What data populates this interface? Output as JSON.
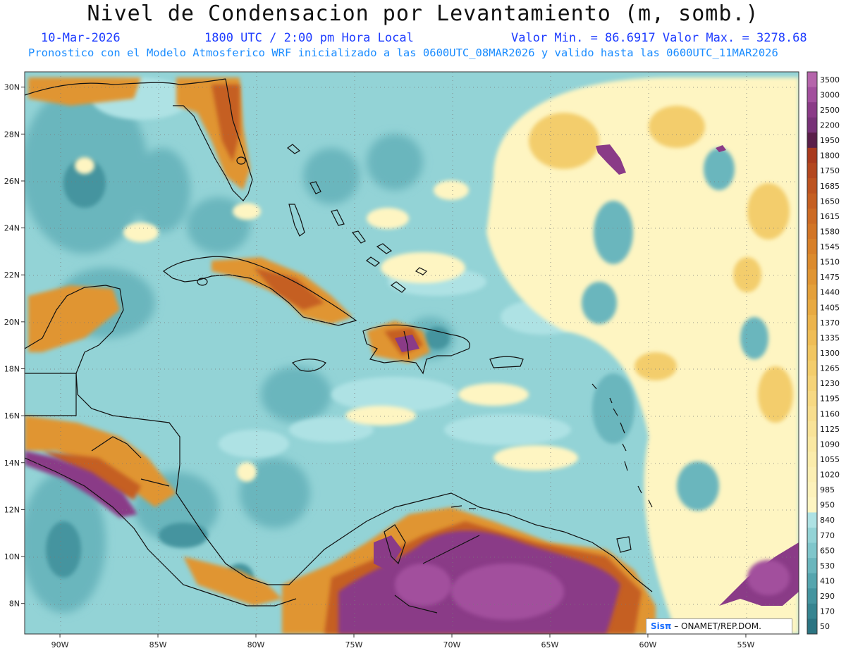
{
  "header": {
    "title": "Nivel de Condensacion por Levantamiento (m, somb.)",
    "date": "10-Mar-2026",
    "time": "1800 UTC / 2:00 pm Hora Local",
    "min_max": "Valor Min. = 86.6917  Valor Max. = 3278.68",
    "model_info": "Pronostico con el Modelo Atmosferico WRF inicializado a las 0600UTC_08MAR2026 y valido hasta las  0600UTC_11MAR2026"
  },
  "axes": {
    "lat_labels": [
      "30N",
      "28N",
      "26N",
      "24N",
      "22N",
      "20N",
      "18N",
      "16N",
      "14N",
      "12N",
      "10N",
      "8N"
    ],
    "lat_values": [
      30,
      28,
      26,
      24,
      22,
      20,
      18,
      16,
      14,
      12,
      10,
      8
    ],
    "lon_labels": [
      "90W",
      "85W",
      "80W",
      "75W",
      "70W",
      "65W",
      "60W",
      "55W"
    ],
    "lon_values": [
      -90,
      -85,
      -80,
      -75,
      -70,
      -65,
      -60,
      -55
    ]
  },
  "colorbar": {
    "labels": [
      "3500",
      "3000",
      "2500",
      "2200",
      "1950",
      "1800",
      "1750",
      "1685",
      "1650",
      "1615",
      "1580",
      "1545",
      "1510",
      "1475",
      "1440",
      "1405",
      "1370",
      "1335",
      "1300",
      "1265",
      "1230",
      "1195",
      "1160",
      "1125",
      "1090",
      "1055",
      "1020",
      "985",
      "950",
      "840",
      "770",
      "650",
      "530",
      "410",
      "290",
      "170",
      "50"
    ],
    "colors": [
      "#b565ab",
      "#a24f9d",
      "#8a3b87",
      "#773277",
      "#5a1f4a",
      "#a93a1e",
      "#b3471f",
      "#bd5320",
      "#c55f22",
      "#cc6a24",
      "#d27526",
      "#d88029",
      "#dc8b2d",
      "#e09533",
      "#e4a03a",
      "#e8aa42",
      "#ecb44c",
      "#efbd56",
      "#f1c661",
      "#f3cd6c",
      "#f5d378",
      "#f7d983",
      "#f8de8e",
      "#f9e398",
      "#fae8a2",
      "#fbecab",
      "#fcefb3",
      "#fdf2bb",
      "#fef5c2",
      "#aee2e4",
      "#93d3d6",
      "#7fc6cb",
      "#6ab6bd",
      "#55a5ae",
      "#44949f",
      "#368490",
      "#2b7482"
    ]
  },
  "credit": {
    "logo": "Sisπ",
    "text": " – ONAMET/REP.DOM."
  },
  "palette": {
    "ocean_base": "#93d3d6",
    "light_cyan": "#aee2e4",
    "teal": "#6ab6bd",
    "dark_teal": "#44949f",
    "yellow": "#fef5c2",
    "light_orange": "#f3cd6c",
    "orange": "#e09533",
    "dark_orange": "#c55f22",
    "purple": "#8a3b87",
    "dark_purple": "#773277"
  }
}
